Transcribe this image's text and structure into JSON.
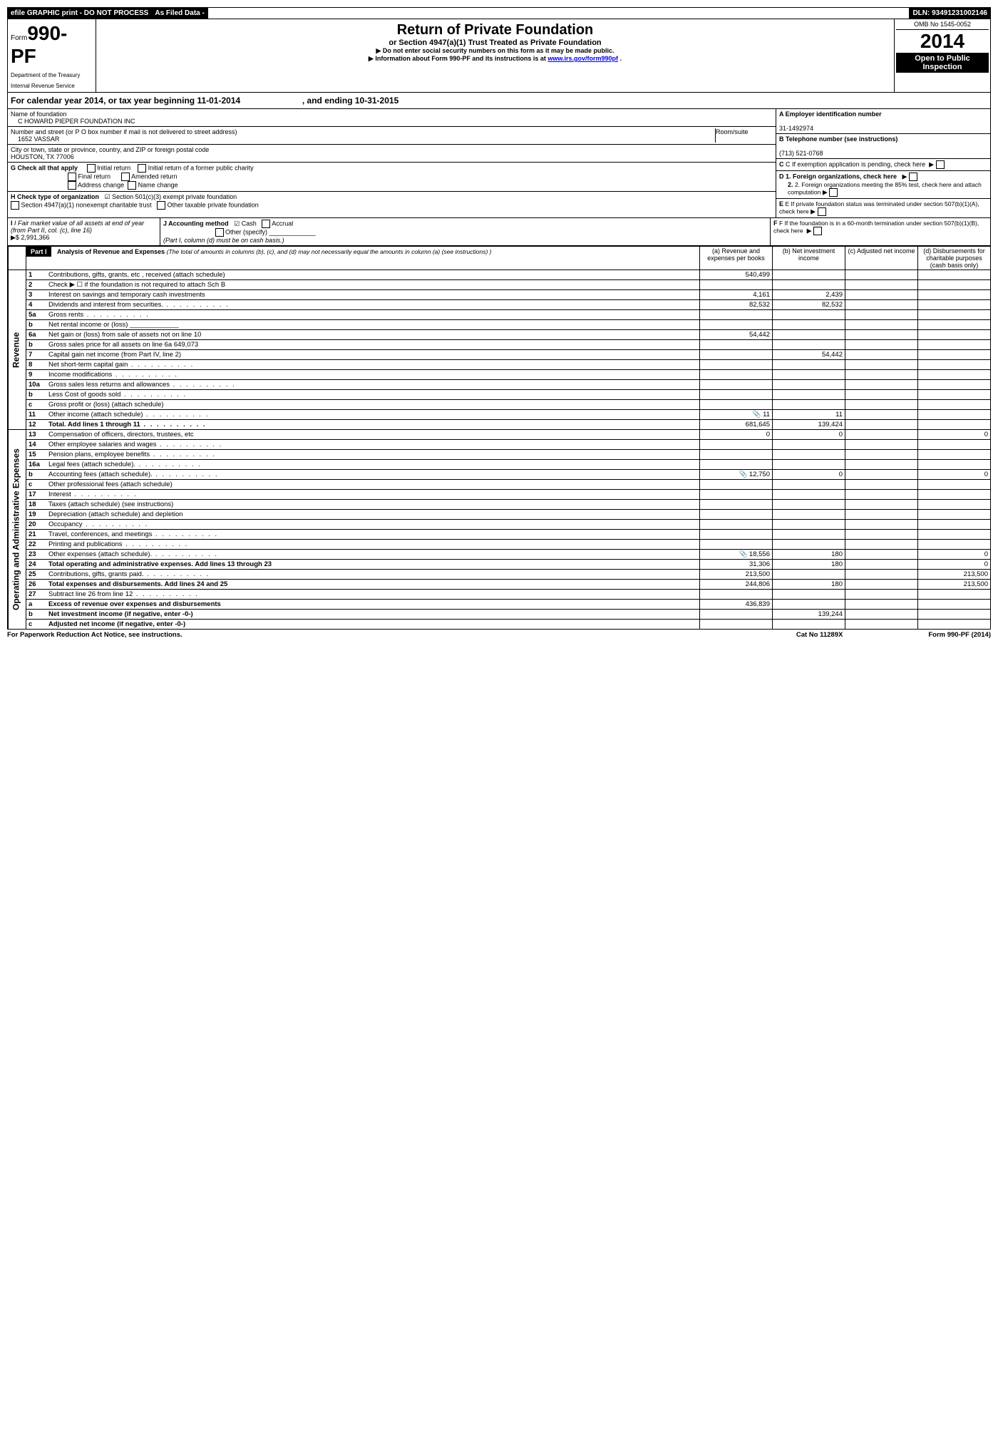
{
  "topbar": {
    "efile": "efile GRAPHIC print - DO NOT PROCESS",
    "asfiled": "As Filed Data -",
    "dln_label": "DLN: ",
    "dln": "93491231002146"
  },
  "header": {
    "form_prefix": "Form",
    "form_num": "990-PF",
    "dept1": "Department of the Treasury",
    "dept2": "Internal Revenue Service",
    "title": "Return of Private Foundation",
    "subtitle": "or Section 4947(a)(1) Trust Treated as Private Foundation",
    "note1": "▶ Do not enter social security numbers on this form as it may be made public.",
    "note2_pre": "▶ Information about Form 990-PF and its instructions is at ",
    "note2_link": "www.irs.gov/form990pf",
    "omb": "OMB No 1545-0052",
    "year": "2014",
    "open": "Open to Public Inspection"
  },
  "cal": {
    "text_a": "For calendar year 2014, or tax year beginning 11-01-2014",
    "text_b": ", and ending 10-31-2015"
  },
  "info": {
    "name_label": "Name of foundation",
    "name": "C HOWARD PIEPER FOUNDATION INC",
    "addr_label": "Number and street (or P O  box number if mail is not delivered to street address)",
    "addr": "1652 VASSAR",
    "room_label": "Room/suite",
    "city_label": "City or town, state or province, country, and ZIP or foreign postal code",
    "city": "HOUSTON, TX  77006",
    "a_label": "A Employer identification number",
    "a_val": "31-1492974",
    "b_label": "B Telephone number (see instructions)",
    "b_val": "(713) 521-0768",
    "c_label": "C If exemption application is pending, check here",
    "g_label": "G Check all that apply",
    "g_opts": [
      "Initial return",
      "Initial return of a former public charity",
      "Final return",
      "Amended return",
      "Address change",
      "Name change"
    ],
    "h_label": "H Check type of organization",
    "h_opts": [
      "Section 501(c)(3) exempt private foundation",
      "Section 4947(a)(1) nonexempt charitable trust",
      "Other taxable private foundation"
    ],
    "d1": "D 1. Foreign organizations, check here",
    "d2": "2. Foreign organizations meeting the 85% test, check here and attach computation",
    "e": "E If private foundation status was terminated under section 507(b)(1)(A), check here",
    "f": "F If the foundation is in a 60-month termination under section 507(b)(1)(B), check here",
    "i_label": "I Fair market value of all assets at end of year (from Part II, col. (c), line 16)",
    "i_val": "▶$  2,991,366",
    "j_label": "J Accounting method",
    "j_opts": [
      "Cash",
      "Accrual",
      "Other (specify)"
    ],
    "j_note": "(Part I, column (d) must be on cash basis.)"
  },
  "part1": {
    "label": "Part I",
    "title": "Analysis of Revenue and Expenses",
    "title_note": "(The total of amounts in columns (b), (c), and (d) may not necessarily equal the amounts in column (a) (see instructions) )",
    "cols": {
      "a": "(a) Revenue and expenses per books",
      "b": "(b) Net investment income",
      "c": "(c) Adjusted net income",
      "d": "(d) Disbursements for charitable purposes (cash basis only)"
    }
  },
  "sections": {
    "revenue": "Revenue",
    "opex": "Operating and Administrative Expenses"
  },
  "rows": [
    {
      "n": "1",
      "d": "Contributions, gifts, grants, etc , received (attach schedule)",
      "a": "540,499",
      "b": "",
      "c": "",
      "dd": ""
    },
    {
      "n": "2",
      "d": "Check ▶ ☐ if the foundation is not required to attach Sch B",
      "a": "",
      "b": "",
      "c": "",
      "dd": ""
    },
    {
      "n": "3",
      "d": "Interest on savings and temporary cash investments",
      "a": "4,161",
      "b": "2,439",
      "c": "",
      "dd": ""
    },
    {
      "n": "4",
      "d": "Dividends and interest from securities.",
      "a": "82,532",
      "b": "82,532",
      "c": "",
      "dd": ""
    },
    {
      "n": "5a",
      "d": "Gross rents",
      "a": "",
      "b": "",
      "c": "",
      "dd": ""
    },
    {
      "n": "b",
      "d": "Net rental income or (loss) _____________",
      "a": "",
      "b": "",
      "c": "",
      "dd": ""
    },
    {
      "n": "6a",
      "d": "Net gain or (loss) from sale of assets not on line 10",
      "a": "54,442",
      "b": "",
      "c": "",
      "dd": ""
    },
    {
      "n": "b",
      "d": "Gross sales price for all assets on line 6a        649,073",
      "a": "",
      "b": "",
      "c": "",
      "dd": ""
    },
    {
      "n": "7",
      "d": "Capital gain net income (from Part IV, line 2)",
      "a": "",
      "b": "54,442",
      "c": "",
      "dd": ""
    },
    {
      "n": "8",
      "d": "Net short-term capital gain",
      "a": "",
      "b": "",
      "c": "",
      "dd": ""
    },
    {
      "n": "9",
      "d": "Income modifications",
      "a": "",
      "b": "",
      "c": "",
      "dd": ""
    },
    {
      "n": "10a",
      "d": "Gross sales less returns and allowances",
      "a": "",
      "b": "",
      "c": "",
      "dd": ""
    },
    {
      "n": "b",
      "d": "Less Cost of goods sold",
      "a": "",
      "b": "",
      "c": "",
      "dd": ""
    },
    {
      "n": "c",
      "d": "Gross profit or (loss) (attach schedule)",
      "a": "",
      "b": "",
      "c": "",
      "dd": ""
    },
    {
      "n": "11",
      "d": "Other income (attach schedule)",
      "a": "11",
      "b": "11",
      "c": "",
      "dd": "",
      "icon": true
    },
    {
      "n": "12",
      "d": "Total. Add lines 1 through 11",
      "a": "681,645",
      "b": "139,424",
      "c": "",
      "dd": "",
      "bold": true
    },
    {
      "n": "13",
      "d": "Compensation of officers, directors, trustees, etc",
      "a": "0",
      "b": "0",
      "c": "",
      "dd": "0"
    },
    {
      "n": "14",
      "d": "Other employee salaries and wages",
      "a": "",
      "b": "",
      "c": "",
      "dd": ""
    },
    {
      "n": "15",
      "d": "Pension plans, employee benefits",
      "a": "",
      "b": "",
      "c": "",
      "dd": ""
    },
    {
      "n": "16a",
      "d": "Legal fees (attach schedule).",
      "a": "",
      "b": "",
      "c": "",
      "dd": ""
    },
    {
      "n": "b",
      "d": "Accounting fees (attach schedule).",
      "a": "12,750",
      "b": "0",
      "c": "",
      "dd": "0",
      "icon": true
    },
    {
      "n": "c",
      "d": "Other professional fees (attach schedule)",
      "a": "",
      "b": "",
      "c": "",
      "dd": ""
    },
    {
      "n": "17",
      "d": "Interest",
      "a": "",
      "b": "",
      "c": "",
      "dd": ""
    },
    {
      "n": "18",
      "d": "Taxes (attach schedule) (see instructions)",
      "a": "",
      "b": "",
      "c": "",
      "dd": ""
    },
    {
      "n": "19",
      "d": "Depreciation (attach schedule) and depletion",
      "a": "",
      "b": "",
      "c": "",
      "dd": ""
    },
    {
      "n": "20",
      "d": "Occupancy",
      "a": "",
      "b": "",
      "c": "",
      "dd": ""
    },
    {
      "n": "21",
      "d": "Travel, conferences, and meetings",
      "a": "",
      "b": "",
      "c": "",
      "dd": ""
    },
    {
      "n": "22",
      "d": "Printing and publications",
      "a": "",
      "b": "",
      "c": "",
      "dd": ""
    },
    {
      "n": "23",
      "d": "Other expenses (attach schedule).",
      "a": "18,556",
      "b": "180",
      "c": "",
      "dd": "0",
      "icon": true
    },
    {
      "n": "24",
      "d": "Total operating and administrative expenses. Add lines 13 through 23",
      "a": "31,306",
      "b": "180",
      "c": "",
      "dd": "0",
      "bold": true
    },
    {
      "n": "25",
      "d": "Contributions, gifts, grants paid.",
      "a": "213,500",
      "b": "",
      "c": "",
      "dd": "213,500"
    },
    {
      "n": "26",
      "d": "Total expenses and disbursements. Add lines 24 and 25",
      "a": "244,806",
      "b": "180",
      "c": "",
      "dd": "213,500",
      "bold": true
    },
    {
      "n": "27",
      "d": "Subtract line 26 from line 12",
      "a": "",
      "b": "",
      "c": "",
      "dd": ""
    },
    {
      "n": "a",
      "d": "Excess of revenue over expenses and disbursements",
      "a": "436,839",
      "b": "",
      "c": "",
      "dd": "",
      "bold": true
    },
    {
      "n": "b",
      "d": "Net investment income (if negative, enter -0-)",
      "a": "",
      "b": "139,244",
      "c": "",
      "dd": "",
      "bold": true
    },
    {
      "n": "c",
      "d": "Adjusted net income (if negative, enter -0-)",
      "a": "",
      "b": "",
      "c": "",
      "dd": "",
      "bold": true
    }
  ],
  "footer": {
    "left": "For Paperwork Reduction Act Notice, see instructions.",
    "mid": "Cat No 11289X",
    "right_pre": "Form ",
    "right_form": "990-PF",
    "right_yr": " (2014)"
  }
}
